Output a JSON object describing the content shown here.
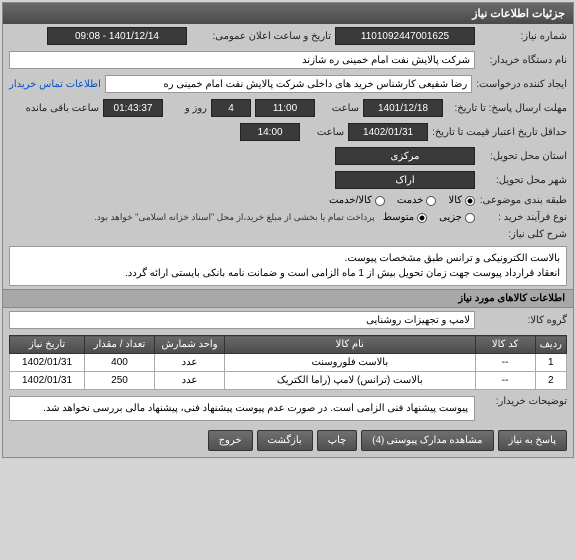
{
  "panel1": {
    "title": "جزئیات اطلاعات نیاز"
  },
  "needNo": {
    "label": "شماره نیاز:",
    "value": "1101092447001625"
  },
  "announce": {
    "label": "تاریخ و ساعت اعلان عمومی:",
    "value": "1401/12/14 - 09:08"
  },
  "buyer": {
    "label": "نام دستگاه خریدار:",
    "value": "شرکت پالایش نفت امام خمینی  ره  شازند"
  },
  "creator": {
    "label": "ایجاد کننده درخواست:",
    "value": "رضا  شفیعی  کارشناس خرید های داخلی  شرکت پالایش نفت امام خمینی  ره",
    "link": "اطلاعات تماس خریدار"
  },
  "deadline": {
    "label": "مهلت ارسال پاسخ: تا تاریخ:",
    "date": "1401/12/18",
    "timeLabel": "ساعت",
    "time": "11:00",
    "daysVal": "4",
    "daysLabel": "روز و",
    "remainVal": "01:43:37",
    "remainLabel": "ساعت باقی مانده"
  },
  "validity": {
    "label": "حداقل تاریخ اعتبار قیمت تا تاریخ:",
    "date": "1402/01/31",
    "timeLabel": "ساعت",
    "time": "14:00"
  },
  "deliverProvince": {
    "label": "استان محل تحویل:",
    "value": "مرکزی"
  },
  "deliverCity": {
    "label": "شهر محل تحویل:",
    "value": "اراک"
  },
  "category": {
    "label": "طبقه بندی موضوعی:",
    "options": [
      {
        "label": "کالا",
        "checked": true
      },
      {
        "label": "خدمت",
        "checked": false
      },
      {
        "label": "کالا/خدمت",
        "checked": false
      }
    ]
  },
  "process": {
    "label": "نوع فرآیند خرید :",
    "options": [
      {
        "label": "جزیی",
        "checked": false
      },
      {
        "label": "متوسط",
        "checked": true
      }
    ],
    "note": "پرداخت تمام یا بخشی از مبلغ خرید،از محل \"اسناد خزانه اسلامی\" خواهد بود."
  },
  "desc": {
    "label": "شرح کلی نیاز:",
    "text": "بالاست الکترونیکی و ترانس طبق مشخصات پیوست.\nانعقاد قرارداد پیوست جهت زمان تحویل بیش از 1 ماه الزامی است و ضمانت نامه بانکی  بایستی ارائه گردد."
  },
  "itemsHeader": "اطلاعات کالاهای مورد نیاز",
  "group": {
    "label": "گروه کالا:",
    "value": "لامپ و تجهیزات روشنایی"
  },
  "table": {
    "cols": [
      "ردیف",
      "کد کالا",
      "نام کالا",
      "واحد شمارش",
      "تعداد / مقدار",
      "تاریخ نیاز"
    ],
    "rows": [
      [
        "1",
        "--",
        "بالاست فلوروسنت",
        "عدد",
        "400",
        "1402/01/31"
      ],
      [
        "2",
        "--",
        "بالاست (ترانس) لامپ (راما الکتریک",
        "عدد",
        "250",
        "1402/01/31"
      ]
    ]
  },
  "buyerNote": {
    "label": "توضیحات خریدار:",
    "text": "پیوست پیشنهاد فنی الزامی است. در صورت عدم پیوست پیشنهاد فنی، پیشنهاد مالی بررسی نخواهد شد."
  },
  "buttons": {
    "reply": "پاسخ به نیاز",
    "attach": "مشاهده مدارک پیوستی (4)",
    "print": "چاپ",
    "back": "بازگشت",
    "exit": "خروج"
  }
}
